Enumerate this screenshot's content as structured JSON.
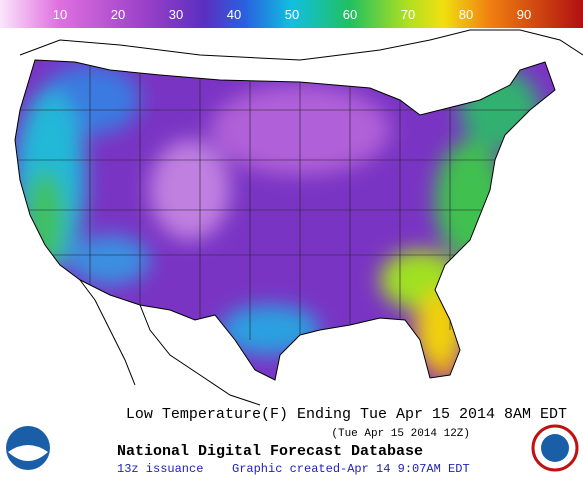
{
  "legend": {
    "ticks": [
      "10",
      "20",
      "30",
      "40",
      "50",
      "60",
      "70",
      "80",
      "90"
    ]
  },
  "caption": {
    "title": "Low Temperature(F) Ending Tue Apr 15 2014  8AM EDT",
    "valid": "(Tue Apr 15 2014 12Z)",
    "source": "National Digital Forecast Database",
    "issuance": "13z issuance",
    "created": "Graphic created-Apr 14  9:07AM EDT"
  }
}
